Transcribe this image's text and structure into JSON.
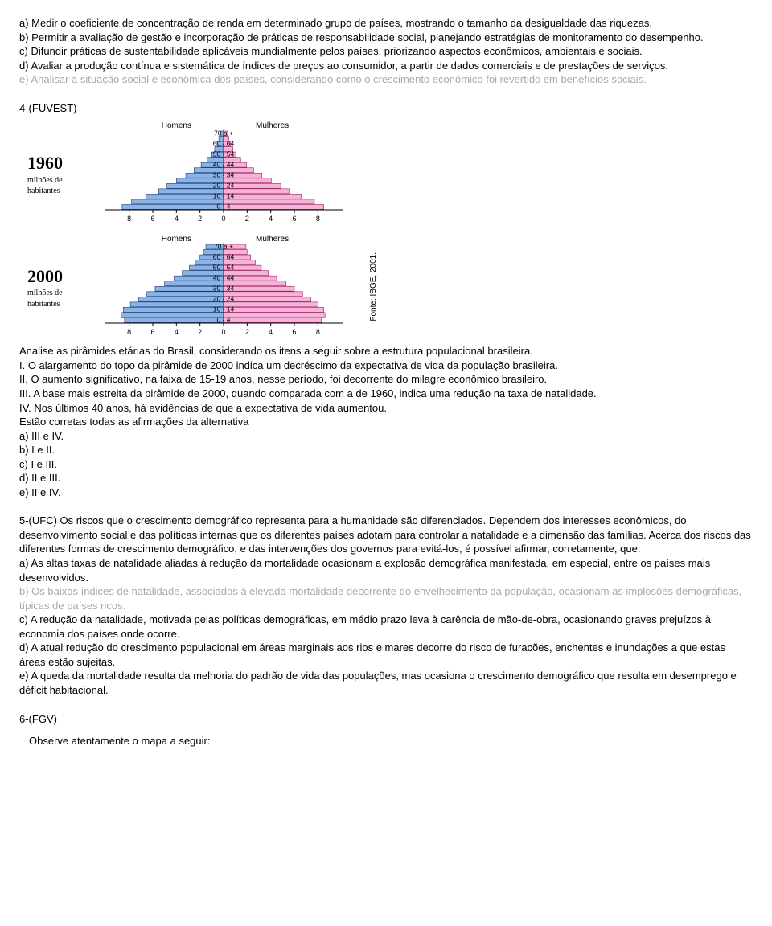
{
  "q3": {
    "a": "a) Medir o coeficiente de concentração de renda em determinado grupo de países, mostrando o tamanho da desigualdade das riquezas.",
    "b": "b) Permitir a avaliação de gestão e incorporação de práticas de responsabilidade social, planejando estratégias de monitoramento do desempenho.",
    "c": "c) Difundir práticas de sustentabilidade aplicáveis mundialmente pelos países, priorizando aspectos econômicos, ambientais e sociais.",
    "d": "d) Avaliar a produção contínua e sistemática de índices de preços ao consumidor, a partir de dados comerciais e de prestações de serviços.",
    "e": "e) Analisar a situação social e econômica dos países, considerando como o crescimento econômico foi revertido em benefícios sociais."
  },
  "q4": {
    "heading": "4-(FUVEST)",
    "chart": {
      "years": [
        "1960",
        "2000"
      ],
      "sublabel": "milhões de\nhabitantes",
      "homens_label": "Homens",
      "mulheres_label": "Mulheres",
      "fonte": "Fonte: IBGE, 2001.",
      "age_labels": [
        "70 a +",
        "60 - 64",
        "50 - 54",
        "40 - 44",
        "30 - 34",
        "20 - 24",
        "10 - 14",
        "0 - 4"
      ],
      "axis_ticks": [
        "8",
        "6",
        "4",
        "2",
        "0",
        "2",
        "4",
        "6",
        "8"
      ],
      "colors": {
        "homens_fill": "#8bb3e6",
        "homens_stroke": "#1a3d7a",
        "mulheres_fill": "#f5b3d9",
        "mulheres_stroke": "#a02060",
        "axis": "#000",
        "text": "#000"
      },
      "pyramids": {
        "1960": {
          "homens": [
            0.3,
            0.4,
            0.55,
            0.75,
            1.0,
            1.4,
            1.9,
            2.5,
            3.2,
            4.0,
            4.8,
            5.5,
            6.6,
            7.8,
            8.6
          ],
          "mulheres": [
            0.35,
            0.45,
            0.6,
            0.8,
            1.05,
            1.45,
            1.95,
            2.55,
            3.25,
            4.05,
            4.85,
            5.55,
            6.6,
            7.7,
            8.5
          ]
        },
        "2000": {
          "homens": [
            1.5,
            1.7,
            2.0,
            2.4,
            2.9,
            3.5,
            4.2,
            5.0,
            5.8,
            6.5,
            7.2,
            7.9,
            8.5,
            8.7,
            8.4
          ],
          "mulheres": [
            1.9,
            2.0,
            2.3,
            2.7,
            3.2,
            3.8,
            4.5,
            5.3,
            6.0,
            6.7,
            7.4,
            8.0,
            8.5,
            8.6,
            8.3
          ]
        }
      }
    },
    "stem": "Analise as pirâmides etárias do Brasil, considerando os itens a seguir sobre a estrutura populacional brasileira.",
    "i": "I. O alargamento do topo da pirâmide de 2000 indica um decréscimo da expectativa de vida da população brasileira.",
    "ii": "II. O aumento significativo, na faixa de 15-19 anos, nesse período, foi decorrente do milagre econômico brasileiro.",
    "iii": "III. A base mais estreita da pirâmide de 2000, quando comparada com a de 1960, indica uma redução na taxa de natalidade.",
    "iv": "IV. Nos últimos 40 anos, há evidências de que a expectativa de vida aumentou.",
    "prompt": "Estão corretas todas as afirmações da alternativa",
    "a": "a) III e IV.",
    "b": "b) I e II.",
    "c": "c) I e III.",
    "d": "d) II e III.",
    "e": "e) II e IV."
  },
  "q5": {
    "stem": "5-(UFC) Os riscos que o crescimento demográfico representa para a humanidade são diferenciados. Dependem dos interesses econômicos, do desenvolvimento social e das políticas internas que os diferentes países adotam para controlar a natalidade e a dimensão das famílias. Acerca dos riscos das diferentes formas de crescimento demográfico, e das intervenções dos governos para evitá-los, é possível afirmar, corretamente, que:",
    "a": "a) As altas taxas de natalidade aliadas à redução da mortalidade ocasionam a explosão demográfica manifestada, em especial, entre os países mais desenvolvidos.",
    "b": "b) Os baixos índices de natalidade, associados à elevada mortalidade decorrente do envelhecimento da população, ocasionam as implosões demográficas, típicas de países ricos.",
    "c": "c) A redução da natalidade, motivada pelas políticas demográficas, em médio prazo leva à carência de mão-de-obra, ocasionando graves prejuízos à economia dos países onde ocorre.",
    "d": "d) A atual redução do crescimento populacional em áreas marginais aos rios e mares decorre do risco de furacões, enchentes e inundações a que estas áreas estão sujeitas.",
    "e": "e) A queda da mortalidade resulta da melhoria do padrão de vida das populações, mas ocasiona o crescimento demográfico que resulta em desemprego e déficit habitacional."
  },
  "q6": {
    "heading": "6-(FGV)",
    "prompt": "Observe atentamente o mapa a seguir:"
  }
}
